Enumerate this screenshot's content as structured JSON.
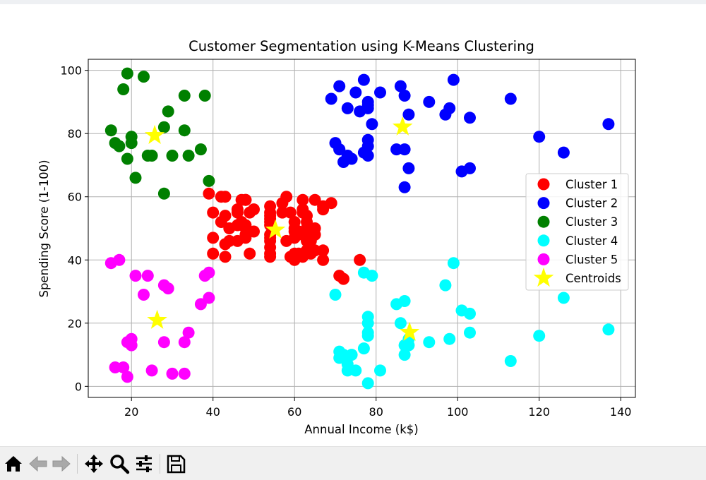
{
  "window": {
    "toolbar": {
      "home": "home-icon",
      "back": "back-arrow-icon",
      "forward": "forward-arrow-icon",
      "pan": "move-icon",
      "zoom": "zoom-icon",
      "configure": "sliders-icon",
      "save": "save-icon"
    }
  },
  "chart_data": {
    "type": "scatter",
    "title": "Customer Segmentation using K-Means Clustering",
    "xlabel": "Annual Income (k$)",
    "ylabel": "Spending Score (1-100)",
    "xlim": [
      9.4,
      143.6
    ],
    "ylim": [
      -3.5,
      103.5
    ],
    "xticks": [
      20,
      40,
      60,
      80,
      100,
      120,
      140
    ],
    "yticks": [
      0,
      20,
      40,
      60,
      80,
      100
    ],
    "grid": true,
    "legend_position": "center-right",
    "series": [
      {
        "name": "Cluster 1",
        "color": "#ff0000",
        "points": [
          [
            39,
            61
          ],
          [
            40,
            55
          ],
          [
            40,
            47
          ],
          [
            40,
            42
          ],
          [
            42,
            52
          ],
          [
            42,
            60
          ],
          [
            43,
            60
          ],
          [
            43,
            54
          ],
          [
            43,
            45
          ],
          [
            43,
            41
          ],
          [
            44,
            50
          ],
          [
            44,
            46
          ],
          [
            46,
            51
          ],
          [
            46,
            46
          ],
          [
            46,
            56
          ],
          [
            46,
            55
          ],
          [
            47,
            52
          ],
          [
            47,
            59
          ],
          [
            48,
            51
          ],
          [
            48,
            59
          ],
          [
            48,
            50
          ],
          [
            48,
            48
          ],
          [
            48,
            59
          ],
          [
            48,
            47
          ],
          [
            49,
            55
          ],
          [
            49,
            42
          ],
          [
            50,
            49
          ],
          [
            50,
            56
          ],
          [
            54,
            47
          ],
          [
            54,
            54
          ],
          [
            54,
            53
          ],
          [
            54,
            48
          ],
          [
            54,
            52
          ],
          [
            54,
            42
          ],
          [
            54,
            51
          ],
          [
            54,
            55
          ],
          [
            54,
            41
          ],
          [
            54,
            44
          ],
          [
            54,
            57
          ],
          [
            54,
            46
          ],
          [
            57,
            58
          ],
          [
            57,
            55
          ],
          [
            58,
            60
          ],
          [
            58,
            46
          ],
          [
            59,
            55
          ],
          [
            59,
            41
          ],
          [
            60,
            49
          ],
          [
            60,
            40
          ],
          [
            60,
            42
          ],
          [
            60,
            52
          ],
          [
            60,
            47
          ],
          [
            60,
            50
          ],
          [
            61,
            42
          ],
          [
            61,
            49
          ],
          [
            62,
            41
          ],
          [
            62,
            48
          ],
          [
            62,
            59
          ],
          [
            62,
            55
          ],
          [
            62,
            56
          ],
          [
            62,
            42
          ],
          [
            63,
            50
          ],
          [
            63,
            46
          ],
          [
            63,
            43
          ],
          [
            63,
            48
          ],
          [
            63,
            52
          ],
          [
            63,
            54
          ],
          [
            64,
            42
          ],
          [
            64,
            46
          ],
          [
            65,
            48
          ],
          [
            65,
            50
          ],
          [
            65,
            43
          ],
          [
            65,
            59
          ],
          [
            67,
            43
          ],
          [
            67,
            57
          ],
          [
            67,
            56
          ],
          [
            67,
            40
          ],
          [
            69,
            58
          ],
          [
            71,
            35
          ],
          [
            72,
            34
          ],
          [
            76,
            40
          ]
        ]
      },
      {
        "name": "Cluster 2",
        "color": "#0000ff",
        "points": [
          [
            69,
            91
          ],
          [
            70,
            77
          ],
          [
            71,
            95
          ],
          [
            71,
            75
          ],
          [
            71,
            75
          ],
          [
            72,
            71
          ],
          [
            73,
            88
          ],
          [
            73,
            73
          ],
          [
            74,
            72
          ],
          [
            75,
            93
          ],
          [
            76,
            87
          ],
          [
            77,
            97
          ],
          [
            77,
            74
          ],
          [
            78,
            90
          ],
          [
            78,
            88
          ],
          [
            78,
            76
          ],
          [
            78,
            89
          ],
          [
            78,
            78
          ],
          [
            78,
            73
          ],
          [
            79,
            83
          ],
          [
            81,
            93
          ],
          [
            85,
            75
          ],
          [
            86,
            95
          ],
          [
            87,
            63
          ],
          [
            87,
            75
          ],
          [
            87,
            92
          ],
          [
            88,
            86
          ],
          [
            88,
            69
          ],
          [
            93,
            90
          ],
          [
            97,
            86
          ],
          [
            98,
            88
          ],
          [
            99,
            97
          ],
          [
            101,
            68
          ],
          [
            103,
            85
          ],
          [
            103,
            69
          ],
          [
            113,
            91
          ],
          [
            120,
            79
          ],
          [
            126,
            74
          ],
          [
            137,
            83
          ]
        ]
      },
      {
        "name": "Cluster 3",
        "color": "#008000",
        "points": [
          [
            15,
            81
          ],
          [
            16,
            77
          ],
          [
            17,
            76
          ],
          [
            18,
            94
          ],
          [
            19,
            72
          ],
          [
            19,
            99
          ],
          [
            20,
            77
          ],
          [
            20,
            79
          ],
          [
            21,
            66
          ],
          [
            23,
            98
          ],
          [
            24,
            73
          ],
          [
            25,
            73
          ],
          [
            28,
            82
          ],
          [
            28,
            61
          ],
          [
            29,
            87
          ],
          [
            30,
            73
          ],
          [
            33,
            81
          ],
          [
            33,
            92
          ],
          [
            34,
            73
          ],
          [
            37,
            75
          ],
          [
            38,
            92
          ],
          [
            39,
            65
          ]
        ]
      },
      {
        "name": "Cluster 4",
        "color": "#00ffff",
        "points": [
          [
            70,
            29
          ],
          [
            71,
            11
          ],
          [
            71,
            9
          ],
          [
            72,
            10
          ],
          [
            73,
            5
          ],
          [
            73,
            7
          ],
          [
            74,
            10
          ],
          [
            75,
            5
          ],
          [
            77,
            12
          ],
          [
            77,
            36
          ],
          [
            78,
            22
          ],
          [
            78,
            17
          ],
          [
            78,
            20
          ],
          [
            78,
            16
          ],
          [
            78,
            1
          ],
          [
            79,
            35
          ],
          [
            81,
            5
          ],
          [
            85,
            26
          ],
          [
            86,
            20
          ],
          [
            87,
            27
          ],
          [
            87,
            13
          ],
          [
            87,
            10
          ],
          [
            88,
            13
          ],
          [
            88,
            15
          ],
          [
            93,
            14
          ],
          [
            97,
            32
          ],
          [
            98,
            15
          ],
          [
            99,
            39
          ],
          [
            101,
            24
          ],
          [
            103,
            17
          ],
          [
            103,
            23
          ],
          [
            113,
            8
          ],
          [
            120,
            16
          ],
          [
            126,
            28
          ],
          [
            137,
            18
          ]
        ]
      },
      {
        "name": "Cluster 5",
        "color": "#ff00ff",
        "points": [
          [
            15,
            39
          ],
          [
            16,
            6
          ],
          [
            17,
            40
          ],
          [
            18,
            6
          ],
          [
            19,
            3
          ],
          [
            19,
            14
          ],
          [
            20,
            15
          ],
          [
            20,
            13
          ],
          [
            21,
            35
          ],
          [
            23,
            29
          ],
          [
            24,
            35
          ],
          [
            25,
            5
          ],
          [
            28,
            14
          ],
          [
            28,
            32
          ],
          [
            29,
            31
          ],
          [
            30,
            4
          ],
          [
            33,
            4
          ],
          [
            33,
            14
          ],
          [
            34,
            17
          ],
          [
            37,
            26
          ],
          [
            38,
            35
          ],
          [
            39,
            36
          ],
          [
            39,
            28
          ]
        ]
      }
    ],
    "centroids": {
      "name": "Centroids",
      "color": "#ffff00",
      "points": [
        [
          55.3,
          49.5
        ],
        [
          86.5,
          82.1
        ],
        [
          25.7,
          79.4
        ],
        [
          88.2,
          17.1
        ],
        [
          26.3,
          20.9
        ]
      ]
    }
  }
}
